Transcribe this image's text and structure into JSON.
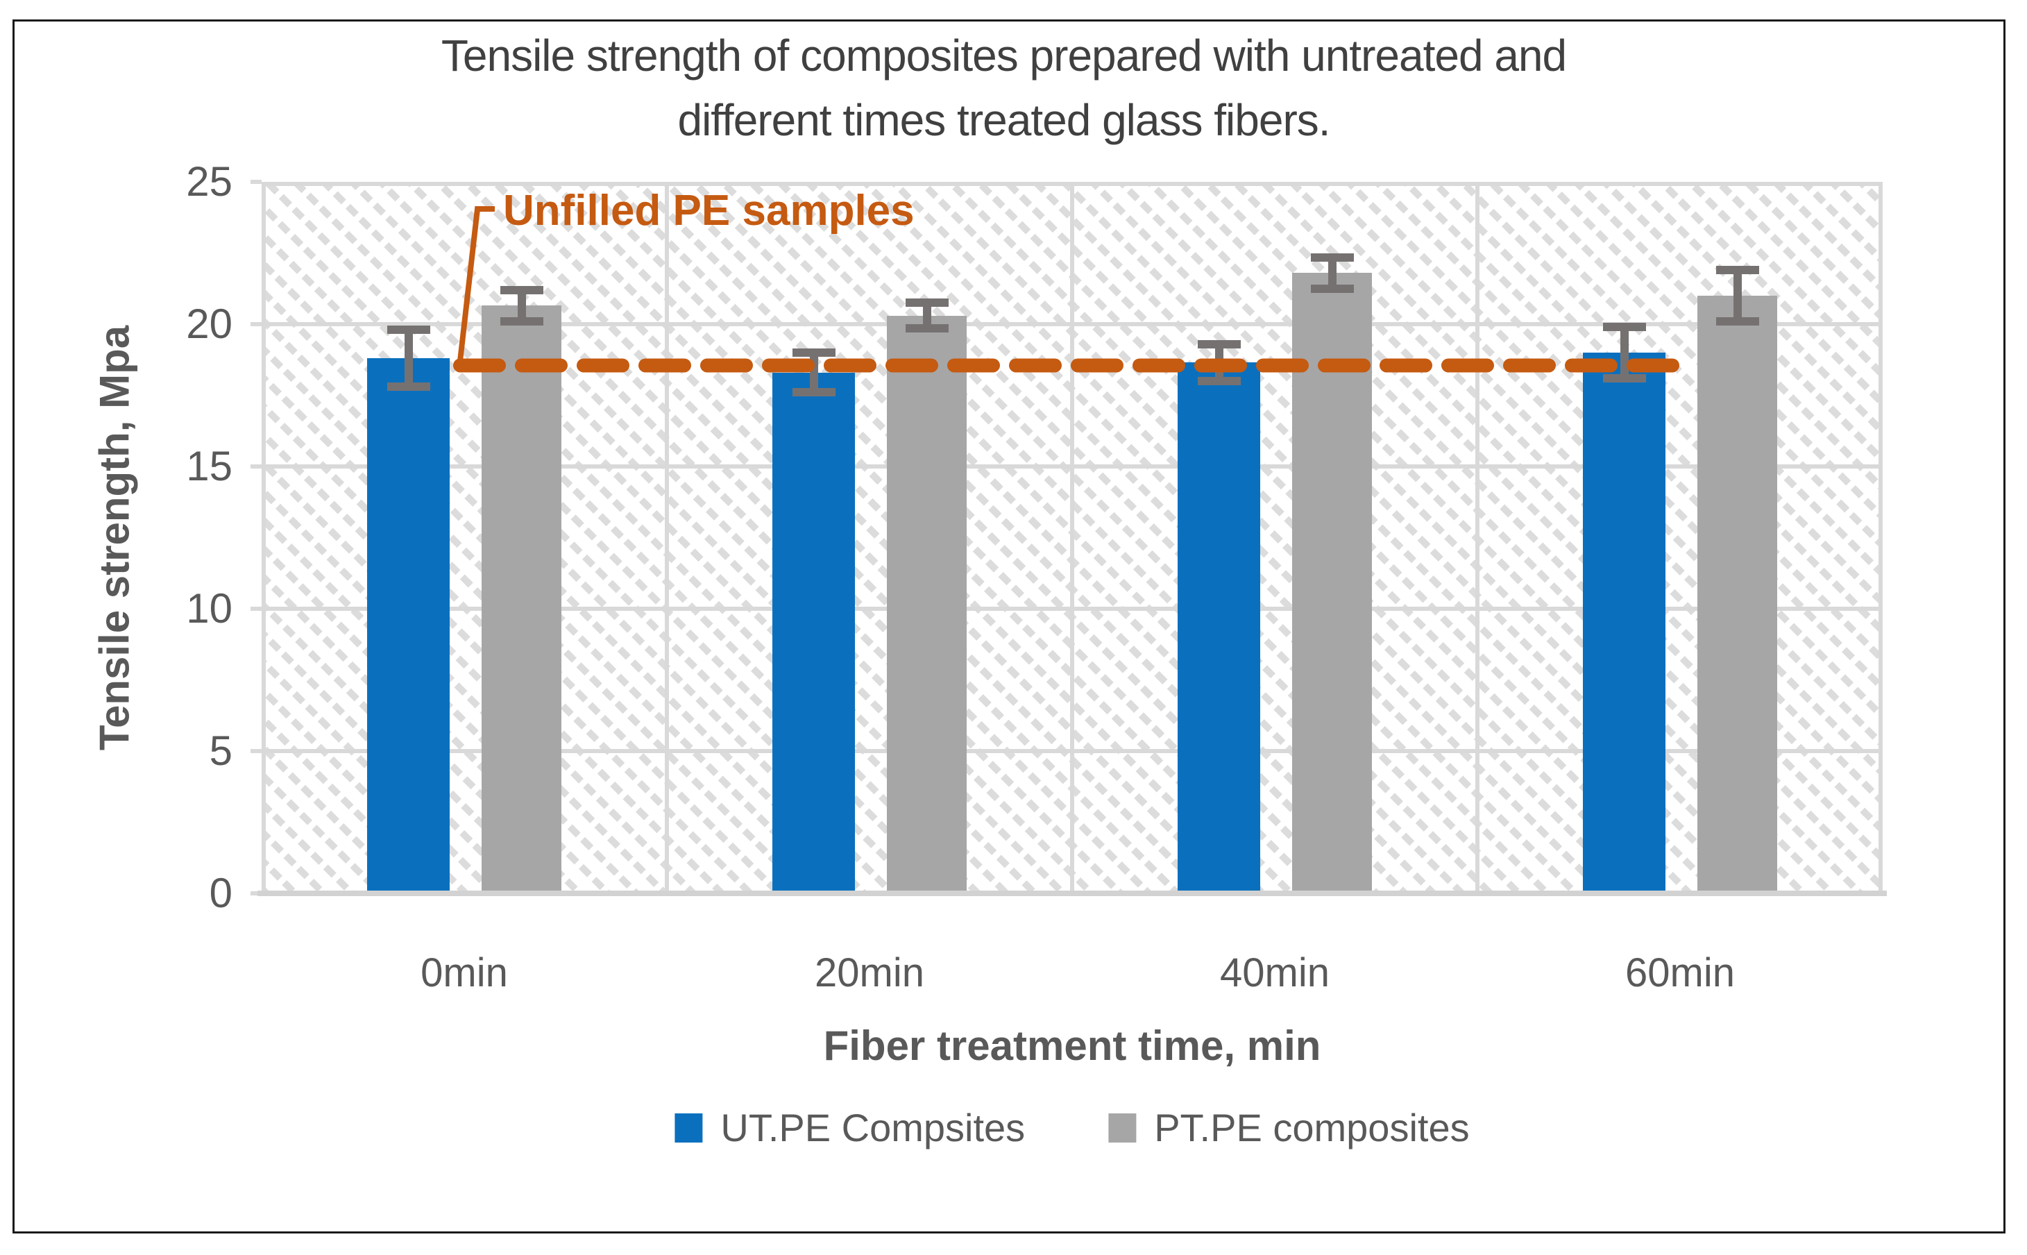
{
  "figure": {
    "title_line1": "Tensile strength of composites prepared with untreated and",
    "title_line2": "different times treated glass fibers."
  },
  "annotation": {
    "label": "Unfilled PE samples"
  },
  "axes": {
    "x_title": "Fiber treatment time, min",
    "y_title": "Tensile strength, Mpa"
  },
  "legend": {
    "entries": [
      {
        "label": "UT.PE Compsites",
        "color": "#0A70BE"
      },
      {
        "label": "PT.PE composites",
        "color": "#A6A6A6"
      }
    ]
  },
  "colors": {
    "ut_blue": "#0A70BE",
    "pt_gray": "#A6A6A6",
    "error_bar": "#767171",
    "reference_orange": "#C55A11",
    "gridline": "#D9D9D9",
    "axis_text": "#595959",
    "title_text": "#404040"
  },
  "chart_data": {
    "type": "bar",
    "title": "Tensile strength of composites prepared with untreated and different times treated glass fibers.",
    "categories": [
      "0min",
      "20min",
      "40min",
      "60min"
    ],
    "series": [
      {
        "name": "UT.PE Compsites",
        "color": "#0A70BE",
        "values": [
          18.8,
          18.3,
          18.65,
          19.0
        ],
        "errors": [
          1.0,
          0.7,
          0.65,
          0.9
        ]
      },
      {
        "name": "PT.PE composites",
        "color": "#A6A6A6",
        "values": [
          20.65,
          20.3,
          21.8,
          21.0
        ],
        "errors": [
          0.55,
          0.45,
          0.55,
          0.9
        ]
      }
    ],
    "reference_line": {
      "label": "Unfilled PE samples",
      "value": 18.55,
      "color": "#C55A11",
      "style": "dashed"
    },
    "xlabel": "Fiber treatment time, min",
    "ylabel": "Tensile strength, Mpa",
    "ylim": [
      0,
      25
    ],
    "ytick_step": 5,
    "grid": true,
    "plot_background": "light-downward-diagonal-hatch",
    "legend_position": "bottom"
  }
}
